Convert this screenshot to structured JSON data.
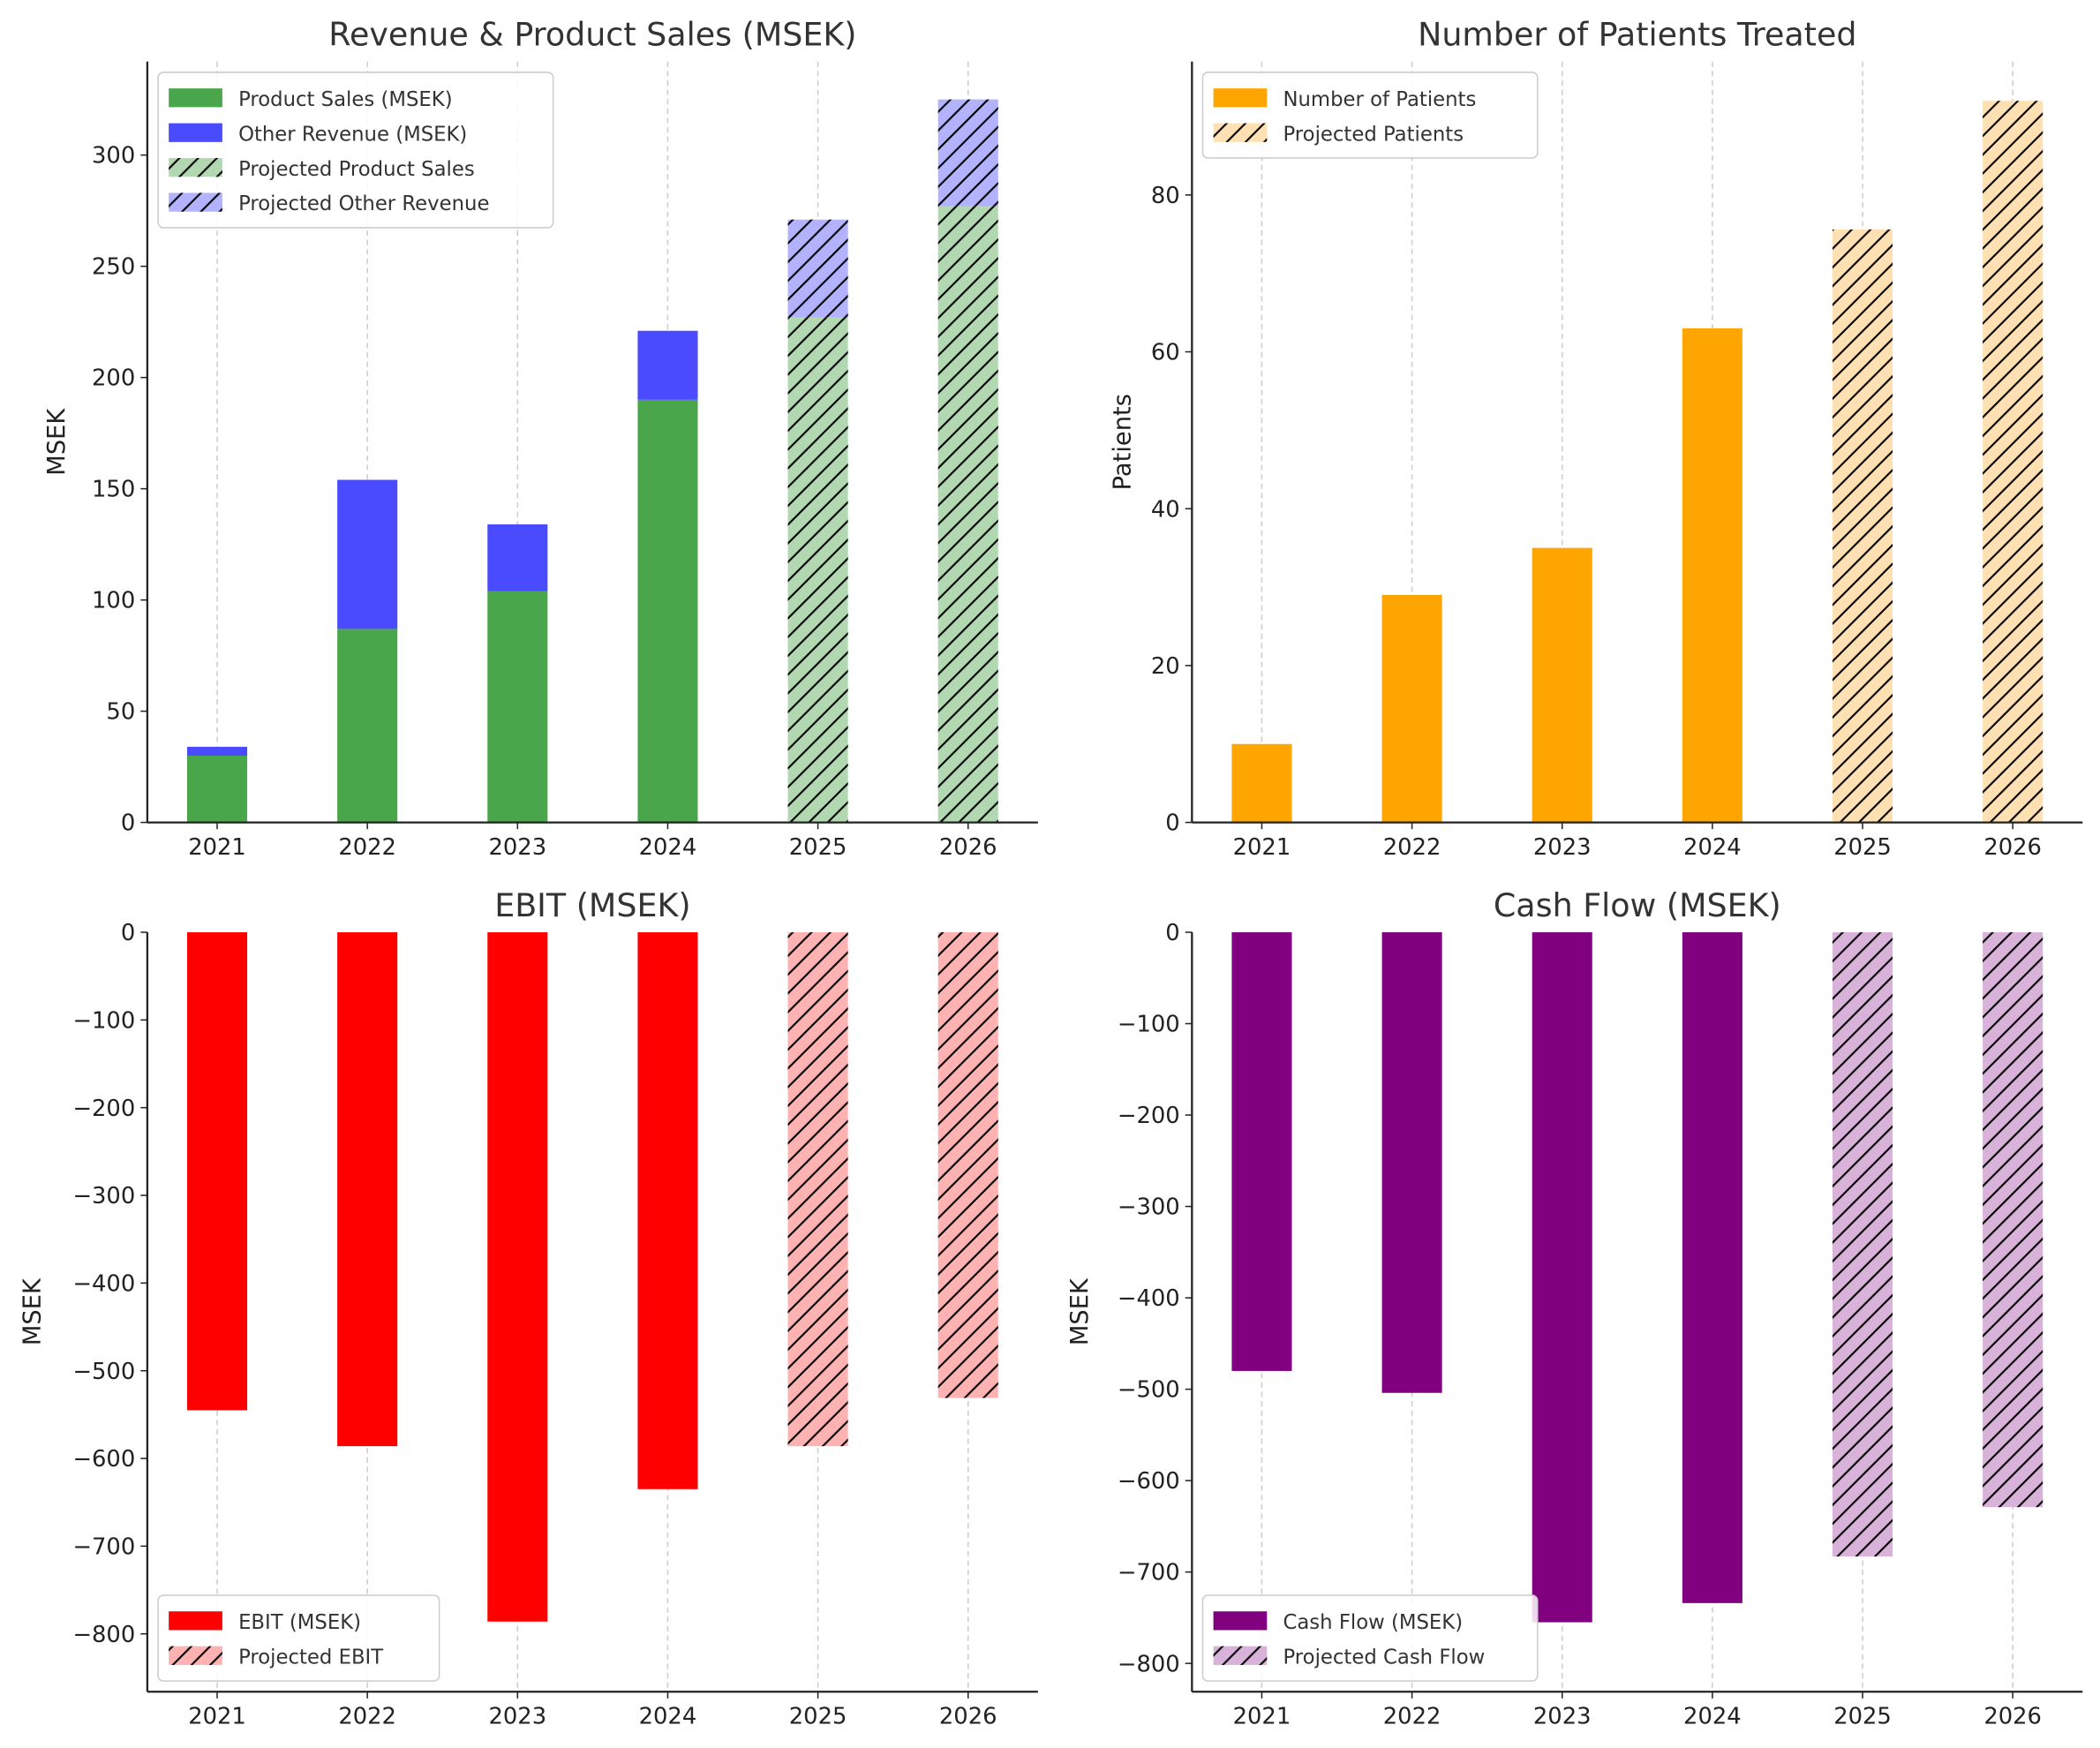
{
  "chart_data": [
    {
      "type": "bar",
      "stacked": true,
      "title": "Revenue & Product Sales (MSEK)",
      "xlabel": "",
      "ylabel": "MSEK",
      "categories": [
        "2021",
        "2022",
        "2023",
        "2024",
        "2025",
        "2026"
      ],
      "projected_from": "2025",
      "ylim": [
        0,
        342
      ],
      "yticks": [
        0,
        50,
        100,
        150,
        200,
        250,
        300
      ],
      "grid": "x dashed",
      "legend_position": "top-left",
      "series": [
        {
          "name": "Product Sales (MSEK)",
          "projected_name": "Projected Product Sales",
          "color": "#4aa64a",
          "projected_color": "#b2d8b2",
          "values": [
            30,
            87,
            104,
            190,
            227,
            277
          ]
        },
        {
          "name": "Other Revenue (MSEK)",
          "projected_name": "Projected Other Revenue",
          "color": "#4a4aff",
          "projected_color": "#b2b2ff",
          "values": [
            4,
            67,
            30,
            31,
            44,
            48
          ]
        }
      ]
    },
    {
      "type": "bar",
      "title": "Number of Patients Treated",
      "xlabel": "",
      "ylabel": "Patients",
      "categories": [
        "2021",
        "2022",
        "2023",
        "2024",
        "2025",
        "2026"
      ],
      "projected_from": "2025",
      "ylim": [
        0,
        97
      ],
      "yticks": [
        0,
        20,
        40,
        60,
        80
      ],
      "grid": "x dashed",
      "legend_position": "top-left",
      "series": [
        {
          "name": "Number of Patients",
          "projected_name": "Projected Patients",
          "color": "#ffa500",
          "projected_color": "#ffe0b2",
          "values": [
            10,
            29,
            35,
            63,
            75.6,
            92
          ]
        }
      ]
    },
    {
      "type": "bar",
      "title": "EBIT (MSEK)",
      "xlabel": "",
      "ylabel": "MSEK",
      "categories": [
        "2021",
        "2022",
        "2023",
        "2024",
        "2025",
        "2026"
      ],
      "projected_from": "2025",
      "ylim": [
        -866,
        0
      ],
      "yticks": [
        0,
        -100,
        -200,
        -300,
        -400,
        -500,
        -600,
        -700,
        -800
      ],
      "grid": "x dashed",
      "legend_position": "bottom-left",
      "series": [
        {
          "name": "EBIT (MSEK)",
          "projected_name": "Projected EBIT",
          "color": "#ff0000",
          "projected_color": "#ffb2b2",
          "values": [
            -545,
            -586,
            -786,
            -635,
            -586,
            -531
          ]
        }
      ]
    },
    {
      "type": "bar",
      "title": "Cash Flow (MSEK)",
      "xlabel": "",
      "ylabel": "MSEK",
      "categories": [
        "2021",
        "2022",
        "2023",
        "2024",
        "2025",
        "2026"
      ],
      "projected_from": "2025",
      "ylim": [
        -831,
        0
      ],
      "yticks": [
        0,
        -100,
        -200,
        -300,
        -400,
        -500,
        -600,
        -700,
        -800
      ],
      "grid": "x dashed",
      "legend_position": "bottom-left",
      "series": [
        {
          "name": "Cash Flow (MSEK)",
          "projected_name": "Projected Cash Flow",
          "color": "#800080",
          "projected_color": "#d8b2d8",
          "values": [
            -480,
            -504,
            -755,
            -734,
            -683,
            -629
          ]
        }
      ]
    }
  ]
}
